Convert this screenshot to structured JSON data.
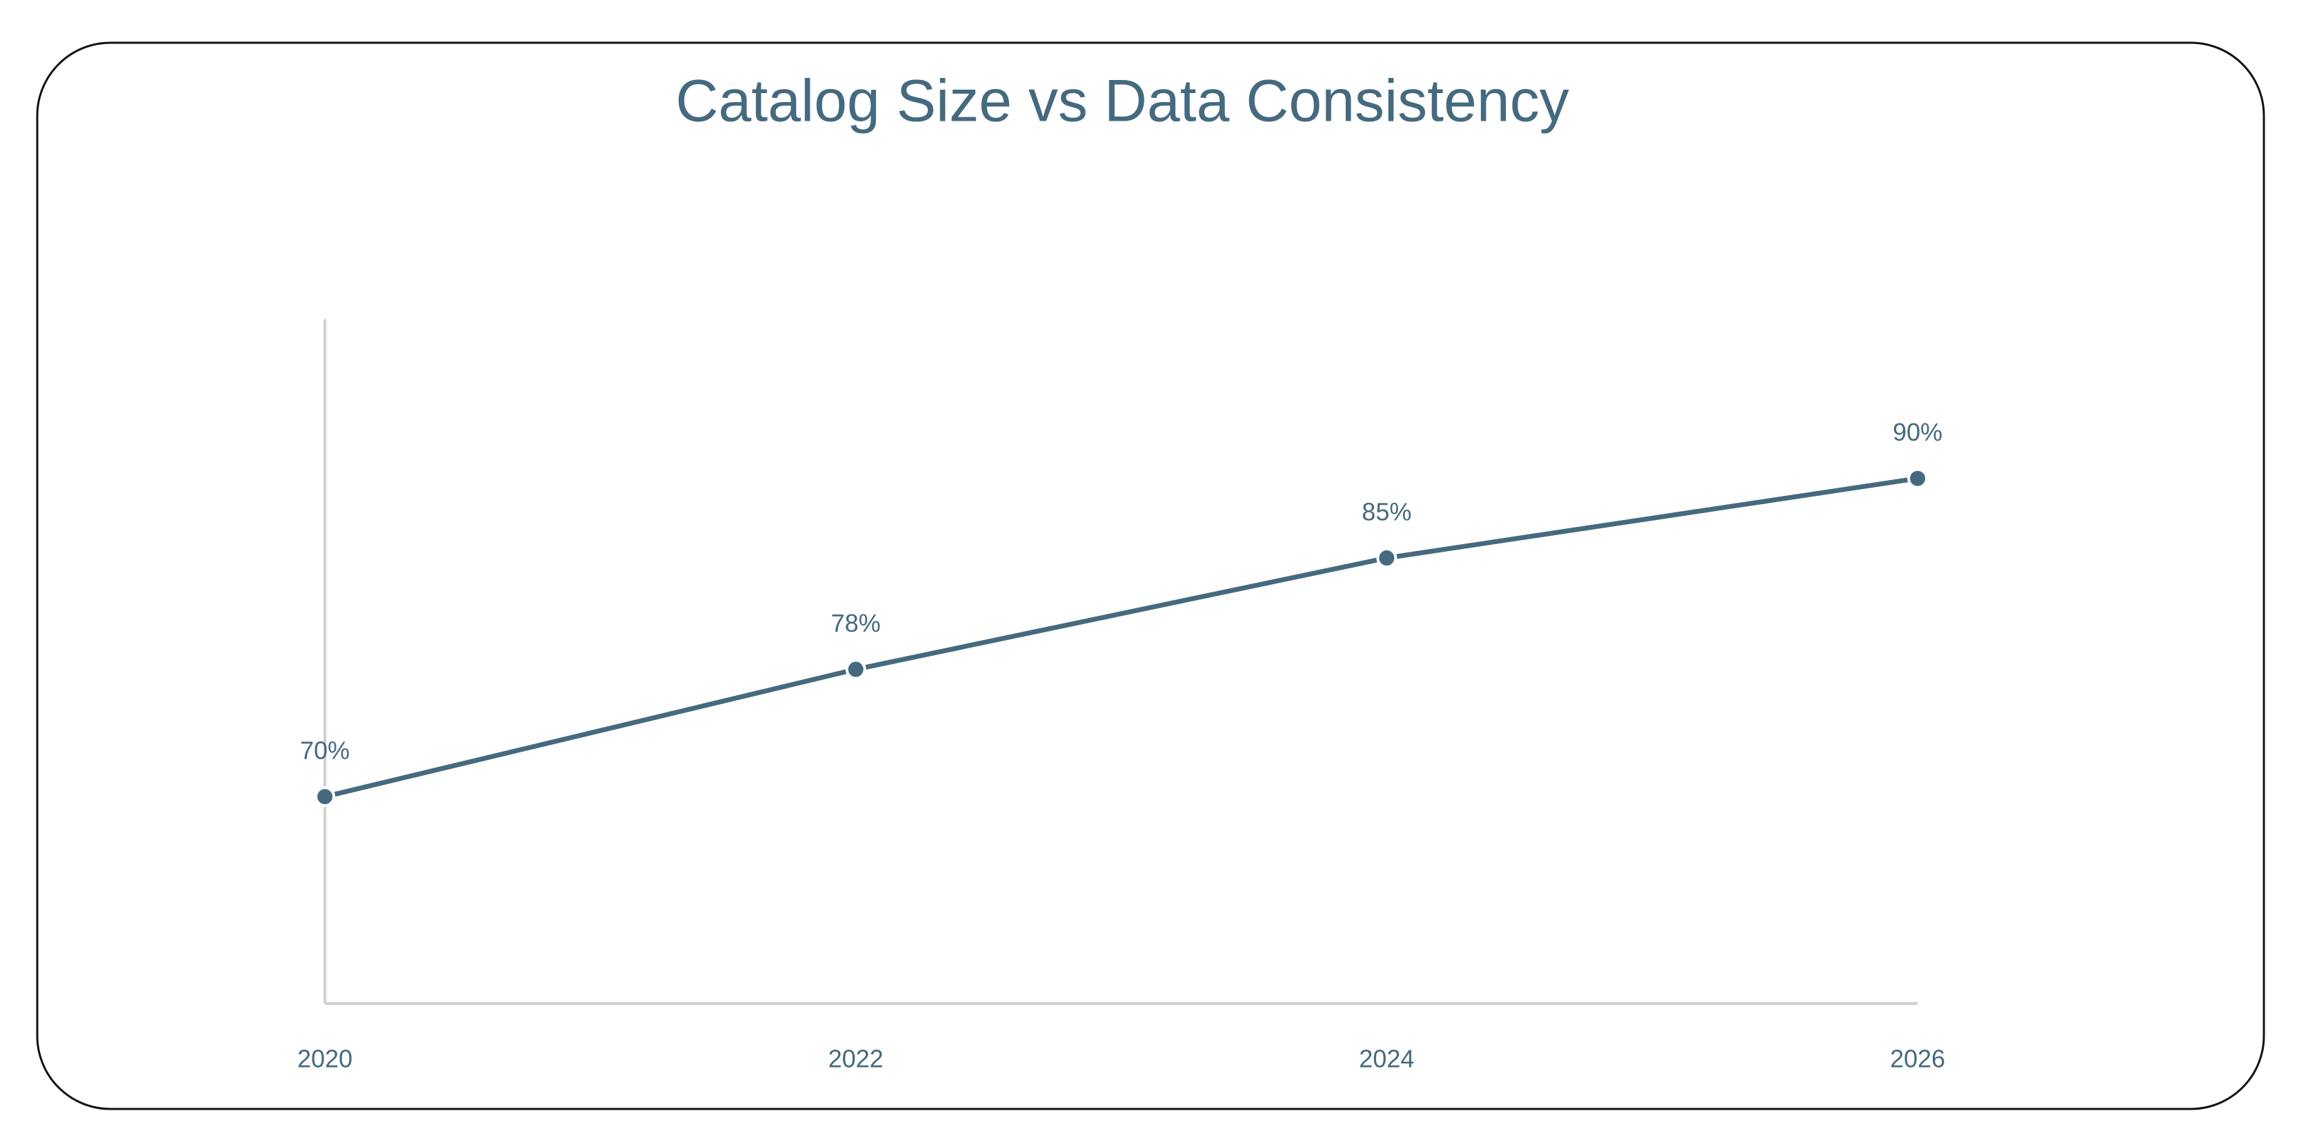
{
  "chart_data": {
    "type": "line",
    "title": "Catalog Size vs Data Consistency",
    "categories": [
      "2020",
      "2022",
      "2024",
      "2026"
    ],
    "values": [
      70,
      78,
      85,
      90
    ],
    "value_labels": [
      "70%",
      "78%",
      "85%",
      "90%"
    ],
    "color": "#456a80",
    "ylim": [
      57,
      100
    ]
  }
}
